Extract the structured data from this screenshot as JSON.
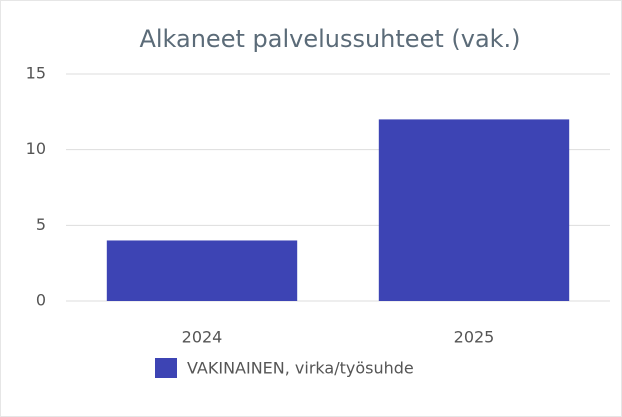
{
  "chart_data": {
    "type": "bar",
    "title": "Alkaneet palvelussuhteet (vak.)",
    "categories": [
      "2024",
      "2025"
    ],
    "series": [
      {
        "name": "VAKINAINEN, virka/työsuhde",
        "color": "#3d44b4",
        "values": [
          4,
          12
        ]
      }
    ],
    "ylim": [
      0,
      15
    ],
    "yticks": [
      0,
      5,
      10,
      15
    ],
    "grid": true,
    "legend": "bottom"
  }
}
